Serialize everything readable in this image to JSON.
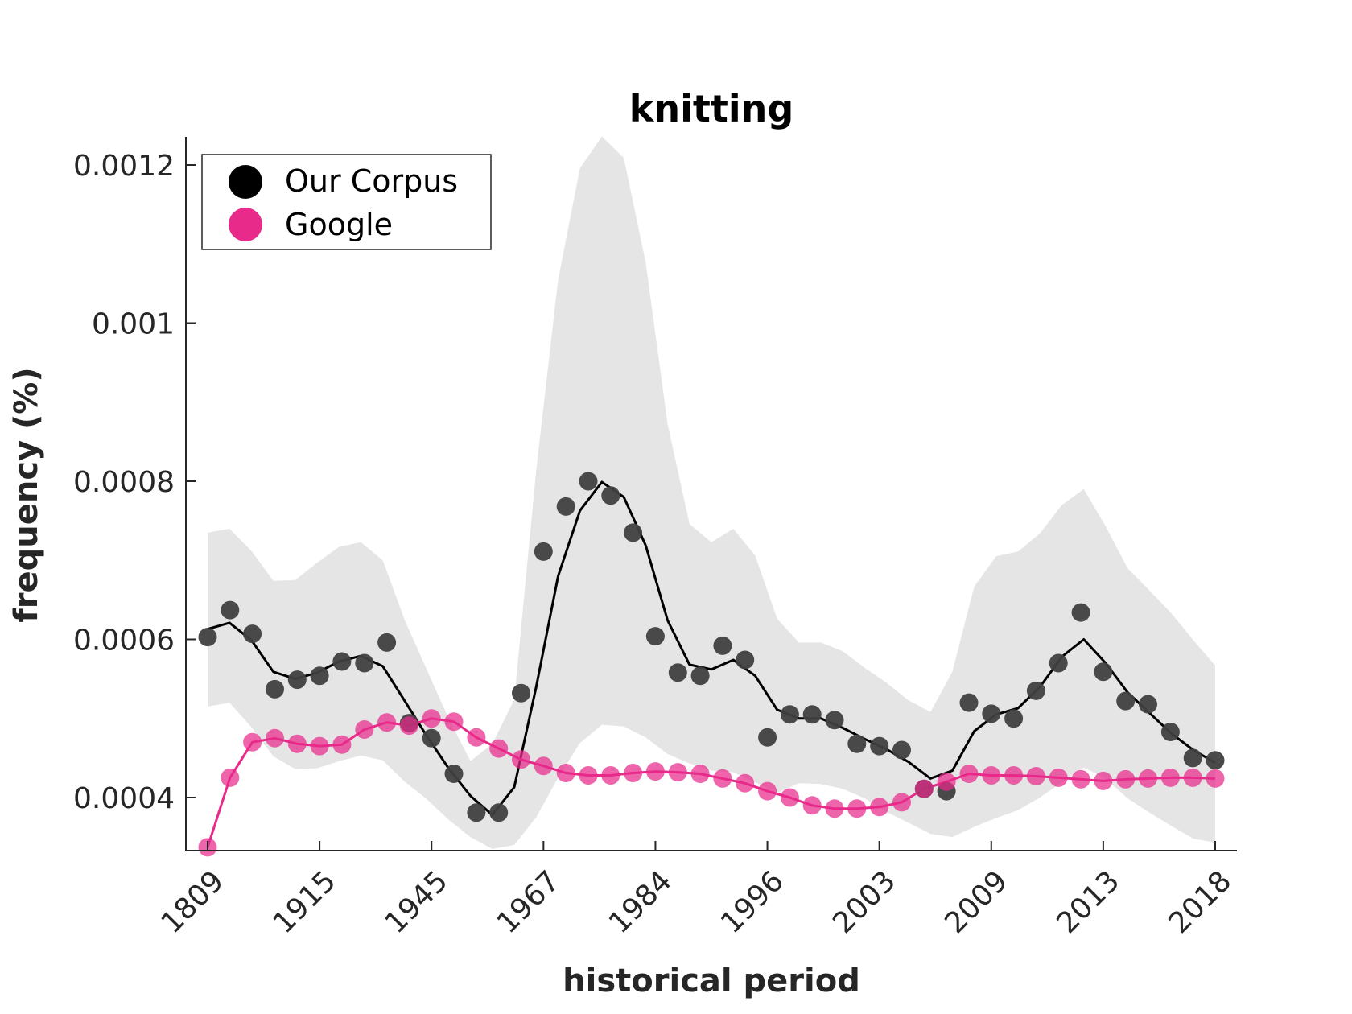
{
  "chart_data": {
    "type": "line",
    "title": "knitting",
    "xlabel": "historical period",
    "ylabel": "frequency (%)",
    "x_tick_labels": [
      "1809",
      "1915",
      "1945",
      "1967",
      "1984",
      "1996",
      "2003",
      "2009",
      "2013",
      "2018"
    ],
    "yticks": [
      0.0004,
      0.0006,
      0.0008,
      0.001,
      0.0012
    ],
    "ytick_labels": [
      "0.0004",
      "0.0006",
      "0.0008",
      "0.001",
      "0.0012"
    ],
    "ylim": [
      0.000335,
      0.00124
    ],
    "grid": false,
    "legend": {
      "position": "top-left",
      "entries": [
        "Our Corpus",
        "Google"
      ]
    },
    "series": [
      {
        "name": "Our Corpus",
        "color": "#404040",
        "points": [
          0.000603,
          0.000637,
          0.000607,
          0.000537,
          0.000549,
          0.000554,
          0.000572,
          0.00057,
          0.000596,
          0.000494,
          0.000475,
          0.00043,
          0.000381,
          0.000381,
          0.000532,
          0.000711,
          0.000768,
          0.0008,
          0.000782,
          0.000735,
          0.000604,
          0.000558,
          0.000554,
          0.000592,
          0.000574,
          0.000476,
          0.000505,
          0.000505,
          0.000498,
          0.000468,
          0.000465,
          0.00046,
          0.000411,
          0.000408,
          0.00052,
          0.000506,
          0.0005,
          0.000535,
          0.00057,
          0.000634,
          0.000559,
          0.000522,
          0.000518,
          0.000483,
          0.00045,
          0.000447
        ],
        "trend": [
          0.000613,
          0.000621,
          0.000599,
          0.000559,
          0.00055,
          0.000558,
          0.000572,
          0.000579,
          0.000566,
          0.000522,
          0.000478,
          0.000437,
          0.000402,
          0.000378,
          0.000413,
          0.00054,
          0.00068,
          0.000763,
          0.000799,
          0.00078,
          0.000719,
          0.000624,
          0.000568,
          0.000562,
          0.000574,
          0.000554,
          0.000511,
          0.0005,
          0.0005,
          0.000488,
          0.000474,
          0.000461,
          0.000445,
          0.000424,
          0.000434,
          0.000484,
          0.000505,
          0.000513,
          0.00054,
          0.000578,
          0.0006,
          0.00057,
          0.000533,
          0.000507,
          0.000481,
          0.00046,
          0.000444
        ],
        "band_upper": [
          0.000735,
          0.00074,
          0.000712,
          0.000674,
          0.000675,
          0.000697,
          0.000717,
          0.000723,
          0.0007,
          0.000624,
          0.000562,
          0.0005,
          0.000446,
          0.000468,
          0.000524,
          0.000814,
          0.001055,
          0.001196,
          0.001236,
          0.001209,
          0.001077,
          0.000872,
          0.000746,
          0.000723,
          0.00074,
          0.000706,
          0.000626,
          0.000596,
          0.000596,
          0.000585,
          0.000564,
          0.000545,
          0.000523,
          0.000508,
          0.000559,
          0.000667,
          0.000705,
          0.000711,
          0.000734,
          0.00077,
          0.00079,
          0.000743,
          0.00069,
          0.000662,
          0.000633,
          0.000599,
          0.000567
        ],
        "band_lower": [
          0.000515,
          0.00052,
          0.000489,
          0.000452,
          0.000436,
          0.000437,
          0.000446,
          0.000453,
          0.000447,
          0.00042,
          0.000398,
          0.000372,
          0.00035,
          0.000335,
          0.00034,
          0.000375,
          0.000425,
          0.000469,
          0.000492,
          0.00049,
          0.000476,
          0.000455,
          0.000443,
          0.000434,
          0.000432,
          0.000419,
          0.000406,
          0.000418,
          0.000417,
          0.000411,
          0.000399,
          0.000382,
          0.000368,
          0.000354,
          0.00035,
          0.000363,
          0.000374,
          0.000384,
          0.0004,
          0.000419,
          0.000438,
          0.000424,
          0.000399,
          0.000381,
          0.000364,
          0.000348,
          0.000343
        ]
      },
      {
        "name": "Google",
        "color": "#e82a8a",
        "points": [
          0.000337,
          0.000425,
          0.00047,
          0.000475,
          0.000468,
          0.000465,
          0.000467,
          0.000486,
          0.000495,
          0.000491,
          0.0005,
          0.000496,
          0.000476,
          0.000462,
          0.000448,
          0.00044,
          0.000431,
          0.000428,
          0.000428,
          0.000431,
          0.000433,
          0.000432,
          0.00043,
          0.000424,
          0.000418,
          0.000408,
          0.0004,
          0.00039,
          0.000386,
          0.000386,
          0.000388,
          0.000394,
          0.000411,
          0.00042,
          0.00043,
          0.000428,
          0.000428,
          0.000427,
          0.000425,
          0.000423,
          0.000421,
          0.000423,
          0.000424,
          0.000425,
          0.000425,
          0.000424
        ]
      }
    ]
  }
}
